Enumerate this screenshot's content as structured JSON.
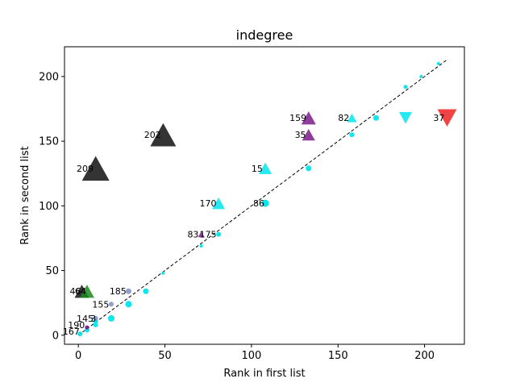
{
  "chart_data": {
    "type": "scatter",
    "title": "indegree",
    "xlabel": "Rank in first list",
    "ylabel": "Rank in second list",
    "xlim": [
      -8,
      223
    ],
    "ylim": [
      -7,
      223
    ],
    "xticks": [
      0,
      50,
      100,
      150,
      200
    ],
    "yticks": [
      0,
      50,
      100,
      150,
      200
    ],
    "diagonal": {
      "from": [
        0,
        0
      ],
      "to": [
        213,
        213
      ],
      "style": "dashed",
      "color": "#000000"
    },
    "colors": {
      "cyan": "#00e5ee",
      "black": "#111111",
      "purple": "#7b1a8c",
      "green": "#1a8a1a",
      "red": "#ee2222",
      "slate": "#8a9ac8"
    },
    "points": [
      {
        "x": 1,
        "y": 1,
        "marker": "circle",
        "color": "cyan",
        "size": 3
      },
      {
        "x": 5,
        "y": 4,
        "marker": "circle",
        "color": "cyan",
        "size": 3
      },
      {
        "x": 10,
        "y": 8,
        "marker": "circle",
        "color": "cyan",
        "size": 3
      },
      {
        "x": 10,
        "y": 11,
        "marker": "circle",
        "color": "cyan",
        "size": 3
      },
      {
        "x": 19,
        "y": 13,
        "marker": "circle",
        "color": "cyan",
        "size": 4
      },
      {
        "x": 29,
        "y": 24,
        "marker": "circle",
        "color": "cyan",
        "size": 4
      },
      {
        "x": 39,
        "y": 34,
        "marker": "circle",
        "color": "cyan",
        "size": 3.5
      },
      {
        "x": 49,
        "y": 48,
        "marker": "circle",
        "color": "cyan",
        "size": 2
      },
      {
        "x": 71,
        "y": 69,
        "marker": "circle",
        "color": "cyan",
        "size": 2
      },
      {
        "x": 81,
        "y": 78,
        "marker": "circle",
        "color": "cyan",
        "size": 3
      },
      {
        "x": 108,
        "y": 102,
        "marker": "circle",
        "color": "cyan",
        "size": 4.5
      },
      {
        "x": 133,
        "y": 129,
        "marker": "circle",
        "color": "cyan",
        "size": 3.5
      },
      {
        "x": 158,
        "y": 155,
        "marker": "circle",
        "color": "cyan",
        "size": 3
      },
      {
        "x": 172,
        "y": 168,
        "marker": "circle",
        "color": "cyan",
        "size": 3.5
      },
      {
        "x": 189,
        "y": 192,
        "marker": "circle",
        "color": "cyan",
        "size": 2.5
      },
      {
        "x": 198,
        "y": 200,
        "marker": "circle",
        "color": "cyan",
        "size": 2
      },
      {
        "x": 208,
        "y": 210,
        "marker": "circle",
        "color": "cyan",
        "size": 2
      },
      {
        "x": 5,
        "y": 6,
        "marker": "circle",
        "color": "purple",
        "size": 2.5
      },
      {
        "x": 10,
        "y": 13,
        "marker": "circle",
        "color": "slate",
        "size": 3
      },
      {
        "x": 19,
        "y": 24,
        "marker": "circle",
        "color": "slate",
        "size": 3
      },
      {
        "x": 29,
        "y": 34,
        "marker": "circle",
        "color": "slate",
        "size": 3.5
      },
      {
        "x": 108,
        "y": 102,
        "marker": "circle",
        "color": "cyan",
        "size": 4
      },
      {
        "x": 81,
        "y": 102,
        "marker": "triangle-up",
        "color": "cyan",
        "size": 8
      },
      {
        "x": 108,
        "y": 129,
        "marker": "triangle-up",
        "color": "cyan",
        "size": 8
      },
      {
        "x": 158,
        "y": 168,
        "marker": "triangle-up",
        "color": "cyan",
        "size": 6
      },
      {
        "x": 133,
        "y": 168,
        "marker": "triangle-up",
        "color": "purple",
        "size": 9
      },
      {
        "x": 133,
        "y": 155,
        "marker": "triangle-up",
        "color": "purple",
        "size": 8
      },
      {
        "x": 71,
        "y": 78,
        "marker": "triangle-up",
        "color": "purple",
        "size": 4
      },
      {
        "x": 10,
        "y": 129,
        "marker": "triangle-up",
        "color": "black",
        "size": 17
      },
      {
        "x": 49,
        "y": 155,
        "marker": "triangle-up",
        "color": "black",
        "size": 16
      },
      {
        "x": 2,
        "y": 34,
        "marker": "triangle-up",
        "color": "black",
        "size": 9
      },
      {
        "x": 5,
        "y": 34,
        "marker": "triangle-up",
        "color": "green",
        "size": 9
      },
      {
        "x": 189,
        "y": 168,
        "marker": "triangle-down",
        "color": "cyan",
        "size": 8
      },
      {
        "x": 213,
        "y": 168,
        "marker": "triangle-down",
        "color": "red",
        "size": 12
      }
    ],
    "annotations": [
      {
        "text": "209",
        "x": -1,
        "y": 129
      },
      {
        "text": "202",
        "x": 38,
        "y": 155
      },
      {
        "text": "159",
        "x": 122,
        "y": 168
      },
      {
        "text": "82",
        "x": 150,
        "y": 168
      },
      {
        "text": "37",
        "x": 205,
        "y": 168
      },
      {
        "text": "35",
        "x": 125,
        "y": 155
      },
      {
        "text": "15",
        "x": 100,
        "y": 129
      },
      {
        "text": "170",
        "x": 70,
        "y": 102
      },
      {
        "text": "86",
        "x": 101,
        "y": 102
      },
      {
        "text": "83",
        "x": 63,
        "y": 78
      },
      {
        "text": "175",
        "x": 70,
        "y": 78
      },
      {
        "text": "185",
        "x": 18,
        "y": 34
      },
      {
        "text": "46",
        "x": -5,
        "y": 34
      },
      {
        "text": "64",
        "x": -2,
        "y": 34
      },
      {
        "text": "155",
        "x": 8,
        "y": 24
      },
      {
        "text": "145",
        "x": -1,
        "y": 13
      },
      {
        "text": "3",
        "x": 7,
        "y": 13
      },
      {
        "text": "190",
        "x": -6,
        "y": 8
      },
      {
        "text": "167",
        "x": -9,
        "y": 3
      }
    ]
  }
}
